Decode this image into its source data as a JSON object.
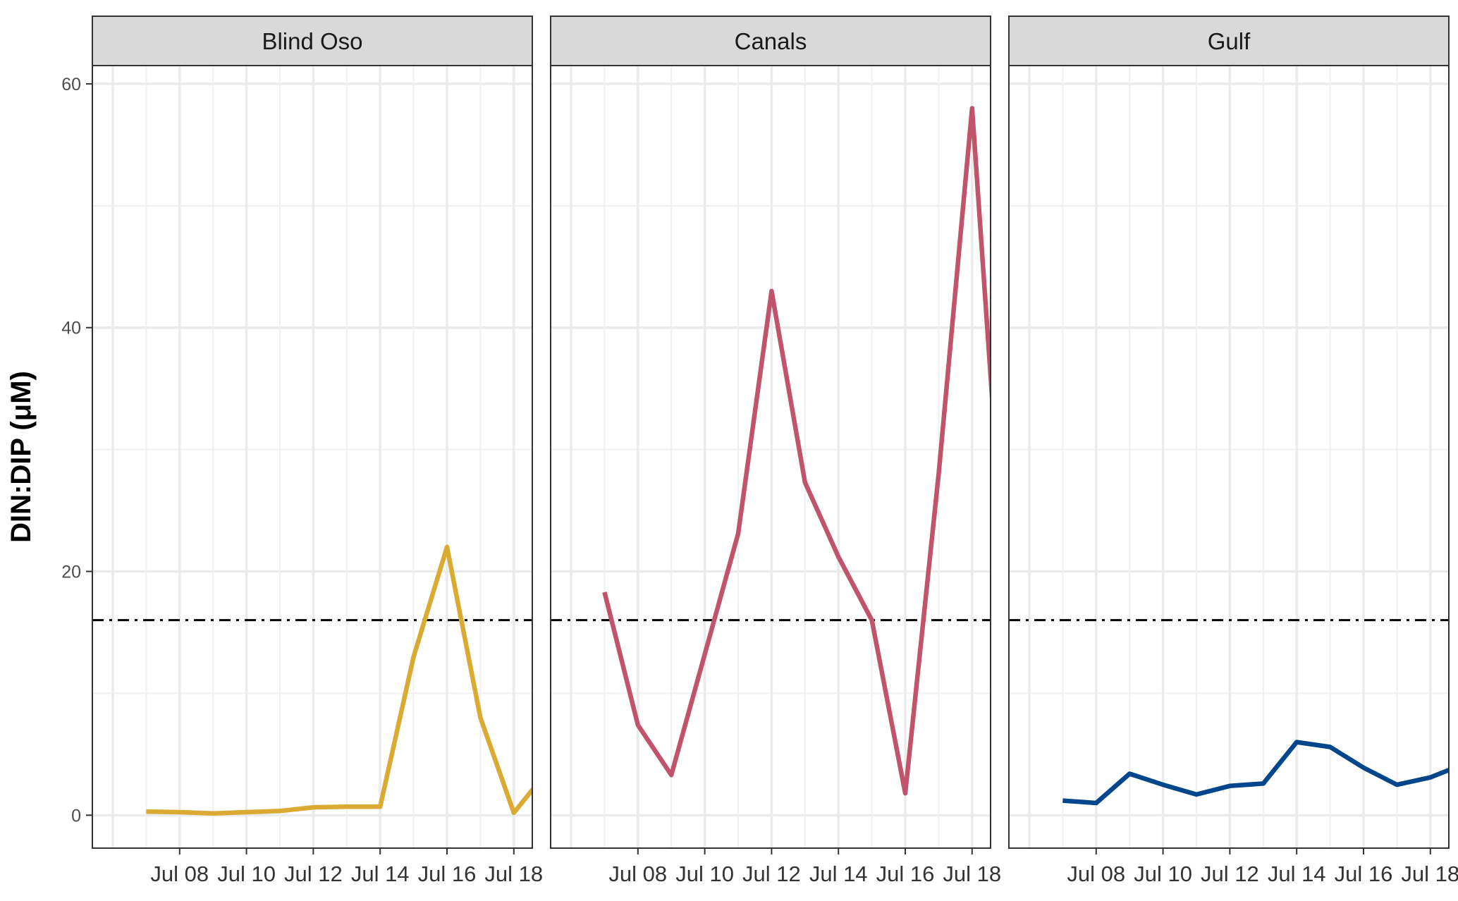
{
  "chart_data": {
    "type": "line",
    "ylabel": "DIN:DIP (μM)",
    "ylim": [
      -2.7,
      61.5
    ],
    "yticks": [
      0,
      20,
      40,
      60
    ],
    "x_range": [
      "2023-07-06",
      "2023-07-19"
    ],
    "x_start": "2023-07-06",
    "xtick_labels": [
      "Jul 08",
      "Jul 10",
      "Jul 12",
      "Jul 14",
      "Jul 16",
      "Jul 18"
    ],
    "xtick_dates": [
      "2023-07-08",
      "2023-07-10",
      "2023-07-12",
      "2023-07-14",
      "2023-07-16",
      "2023-07-18"
    ],
    "reference_line": {
      "value": 16,
      "style": "dot-dash",
      "color": "#000000"
    },
    "grid": true,
    "panels": [
      {
        "name": "Blind Oso",
        "color": "#DAAA33",
        "x": [
          "2023-07-07",
          "2023-07-08",
          "2023-07-09",
          "2023-07-10",
          "2023-07-11",
          "2023-07-12",
          "2023-07-13",
          "2023-07-14",
          "2023-07-15",
          "2023-07-16",
          "2023-07-17",
          "2023-07-18",
          "2023-07-19"
        ],
        "values": [
          0.3,
          0.25,
          0.15,
          0.25,
          0.35,
          0.65,
          0.7,
          0.7,
          13,
          22,
          8,
          0.2,
          3.6
        ]
      },
      {
        "name": "Canals",
        "color": "#C1546A",
        "x": [
          "2023-07-07",
          "2023-07-08",
          "2023-07-09",
          "2023-07-10",
          "2023-07-11",
          "2023-07-12",
          "2023-07-13",
          "2023-07-14",
          "2023-07-15",
          "2023-07-16",
          "2023-07-17",
          "2023-07-18",
          "2023-07-19"
        ],
        "values": [
          18.3,
          7.4,
          3.3,
          13.2,
          23.1,
          43,
          27.3,
          21.2,
          16,
          1.8,
          28,
          58,
          18.3
        ]
      },
      {
        "name": "Gulf",
        "color": "#01468B",
        "x": [
          "2023-07-07",
          "2023-07-08",
          "2023-07-09",
          "2023-07-10",
          "2023-07-11",
          "2023-07-12",
          "2023-07-13",
          "2023-07-14",
          "2023-07-15",
          "2023-07-16",
          "2023-07-17",
          "2023-07-18",
          "2023-07-19"
        ],
        "values": [
          1.2,
          1.0,
          3.4,
          2.5,
          1.7,
          2.4,
          2.6,
          6.0,
          5.6,
          3.9,
          2.5,
          3.1,
          4.2
        ]
      }
    ]
  }
}
